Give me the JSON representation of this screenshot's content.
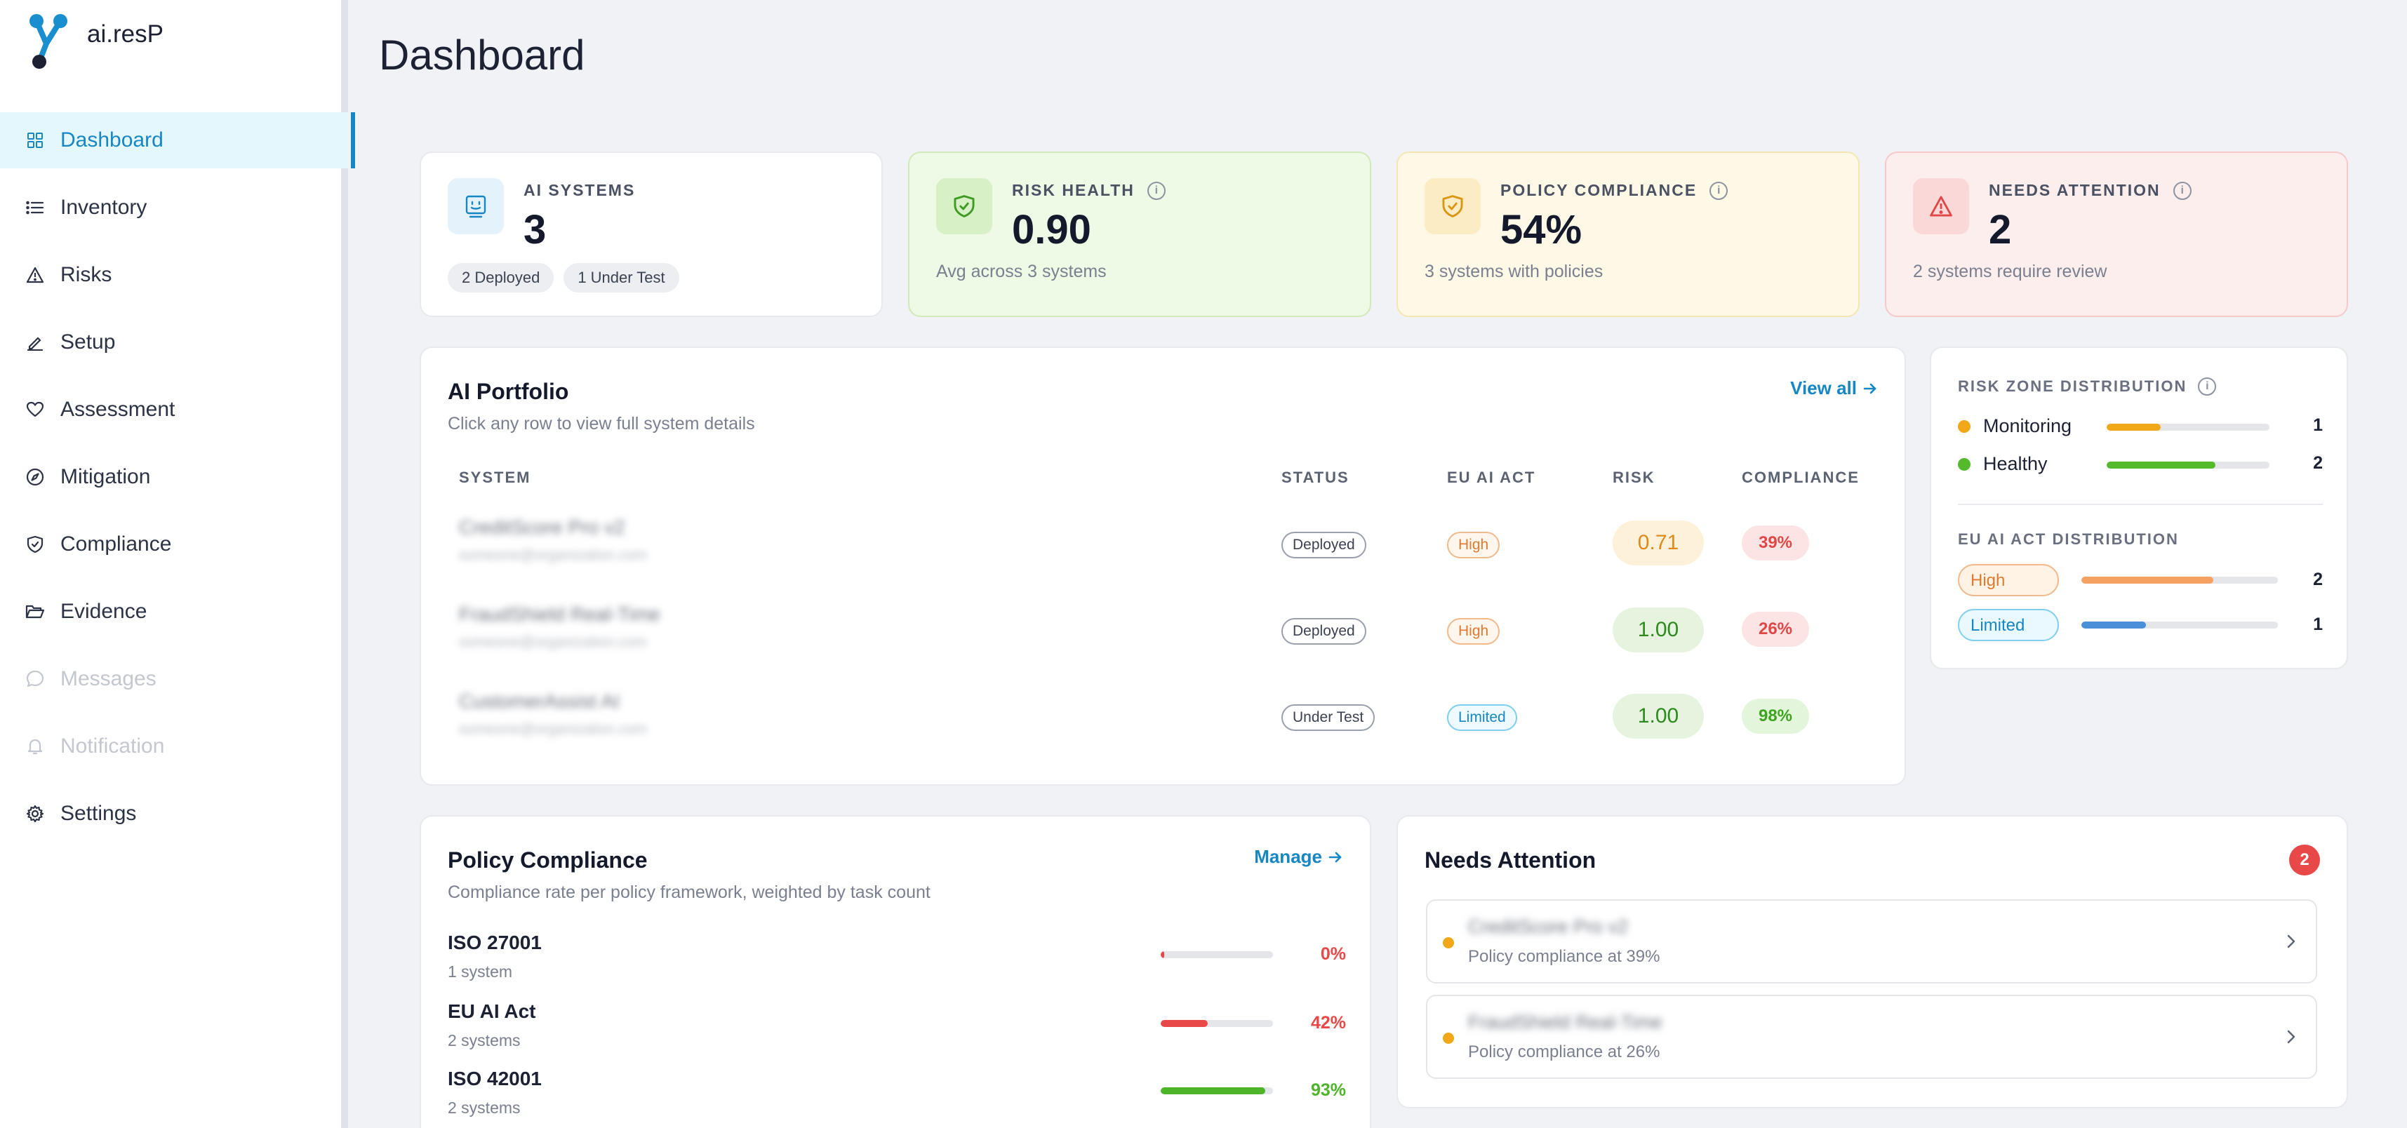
{
  "app": {
    "name": "ai.resP"
  },
  "sidebar": {
    "items": [
      {
        "label": "Dashboard",
        "icon": "grid-icon",
        "active": true
      },
      {
        "label": "Inventory",
        "icon": "list-icon"
      },
      {
        "label": "Risks",
        "icon": "warning-icon"
      },
      {
        "label": "Setup",
        "icon": "pencil-icon"
      },
      {
        "label": "Assessment",
        "icon": "heart-icon"
      },
      {
        "label": "Mitigation",
        "icon": "compass-icon"
      },
      {
        "label": "Compliance",
        "icon": "shield-check-icon"
      },
      {
        "label": "Evidence",
        "icon": "folder-open-icon"
      },
      {
        "label": "Messages",
        "icon": "chat-icon",
        "disabled": true
      },
      {
        "label": "Notification",
        "icon": "bell-icon",
        "disabled": true
      },
      {
        "label": "Settings",
        "icon": "gear-icon"
      }
    ]
  },
  "page": {
    "title": "Dashboard"
  },
  "stats": {
    "ai_systems": {
      "label": "AI SYSTEMS",
      "value": "3",
      "chips": [
        "2 Deployed",
        "1 Under Test"
      ]
    },
    "risk_health": {
      "label": "RISK HEALTH",
      "value": "0.90",
      "sub": "Avg across 3 systems"
    },
    "policy_compliance": {
      "label": "POLICY COMPLIANCE",
      "value": "54%",
      "sub": "3 systems with policies"
    },
    "needs_attention": {
      "label": "NEEDS ATTENTION",
      "value": "2",
      "sub": "2 systems require review"
    }
  },
  "portfolio": {
    "title": "AI Portfolio",
    "subtitle": "Click any row to view full system details",
    "view_all": "View all",
    "columns": [
      "SYSTEM",
      "STATUS",
      "EU AI ACT",
      "RISK",
      "COMPLIANCE"
    ],
    "rows": [
      {
        "name": "CreditScore Pro v2",
        "email": "someone@organization.com",
        "status": "Deployed",
        "eu": "High",
        "risk": "0.71",
        "compliance": "39%"
      },
      {
        "name": "FraudShield Real-Time",
        "email": "someone@organization.com",
        "status": "Deployed",
        "eu": "High",
        "risk": "1.00",
        "compliance": "26%"
      },
      {
        "name": "CustomerAssist AI",
        "email": "someone@organization.com",
        "status": "Under Test",
        "eu": "Limited",
        "risk": "1.00",
        "compliance": "98%"
      }
    ]
  },
  "risk_zone": {
    "title": "RISK ZONE DISTRIBUTION",
    "items": [
      {
        "label": "Monitoring",
        "count": "1",
        "color": "#f0a818",
        "fraction": 0.33
      },
      {
        "label": "Healthy",
        "count": "2",
        "color": "#55b92c",
        "fraction": 0.67
      }
    ]
  },
  "eu_act": {
    "title": "EU AI ACT DISTRIBUTION",
    "items": [
      {
        "label": "High",
        "count": "2",
        "color": "#f4a161",
        "fraction": 0.67
      },
      {
        "label": "Limited",
        "count": "1",
        "color": "#4a90d9",
        "fraction": 0.33
      }
    ]
  },
  "policy": {
    "title": "Policy Compliance",
    "subtitle": "Compliance rate per policy framework, weighted by task count",
    "manage": "Manage",
    "items": [
      {
        "name": "ISO 27001",
        "systems": "1 system",
        "pct": "0%",
        "value": 0,
        "color": "#e84848"
      },
      {
        "name": "EU AI Act",
        "systems": "2 systems",
        "pct": "42%",
        "value": 42,
        "color": "#e84848"
      },
      {
        "name": "ISO 42001",
        "systems": "2 systems",
        "pct": "93%",
        "value": 93,
        "color": "#4cb52a"
      }
    ]
  },
  "attention": {
    "title": "Needs Attention",
    "count": "2",
    "items": [
      {
        "name": "CreditScore Pro v2",
        "detail": "Policy compliance at 39%"
      },
      {
        "name": "FraudShield Real-Time",
        "detail": "Policy compliance at 26%"
      }
    ]
  }
}
